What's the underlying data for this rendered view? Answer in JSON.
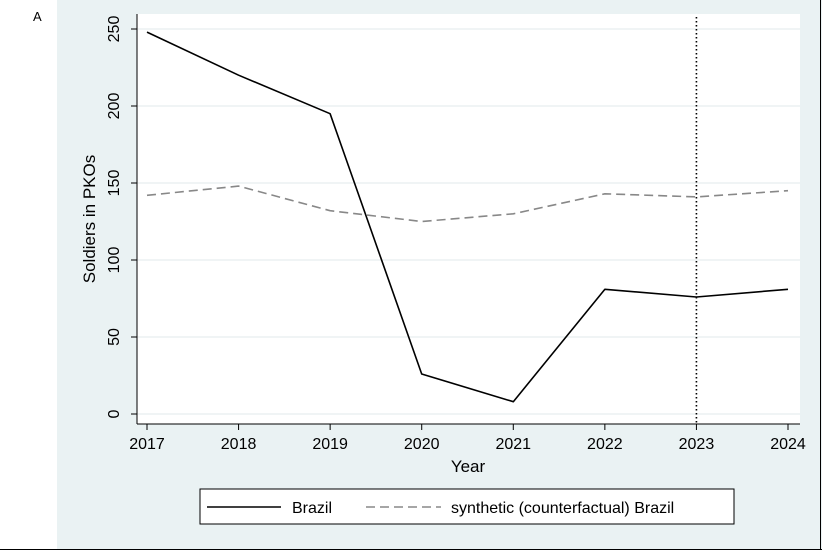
{
  "panel_label": "A",
  "chart_data": {
    "type": "line",
    "x": [
      2017,
      2018,
      2019,
      2020,
      2021,
      2022,
      2023,
      2024
    ],
    "series": [
      {
        "name": "Brazil",
        "style": "solid",
        "color": "#000000",
        "values": [
          248,
          220,
          195,
          26,
          8,
          81,
          76,
          81
        ]
      },
      {
        "name": "synthetic (counterfactual) Brazil",
        "style": "dashed",
        "color": "#888888",
        "values": [
          142,
          148,
          132,
          125,
          130,
          143,
          141,
          145
        ]
      }
    ],
    "xlabel": "Year",
    "ylabel": "Soldiers in PKOs",
    "x_ticks": [
      2017,
      2018,
      2019,
      2020,
      2021,
      2022,
      2023,
      2024
    ],
    "y_ticks": [
      0,
      50,
      100,
      150,
      200,
      250
    ],
    "ylim": [
      0,
      250
    ],
    "xlim": [
      2017,
      2024
    ],
    "vline_x": 2023,
    "grid": "horizontal",
    "legend_position": "bottom"
  }
}
